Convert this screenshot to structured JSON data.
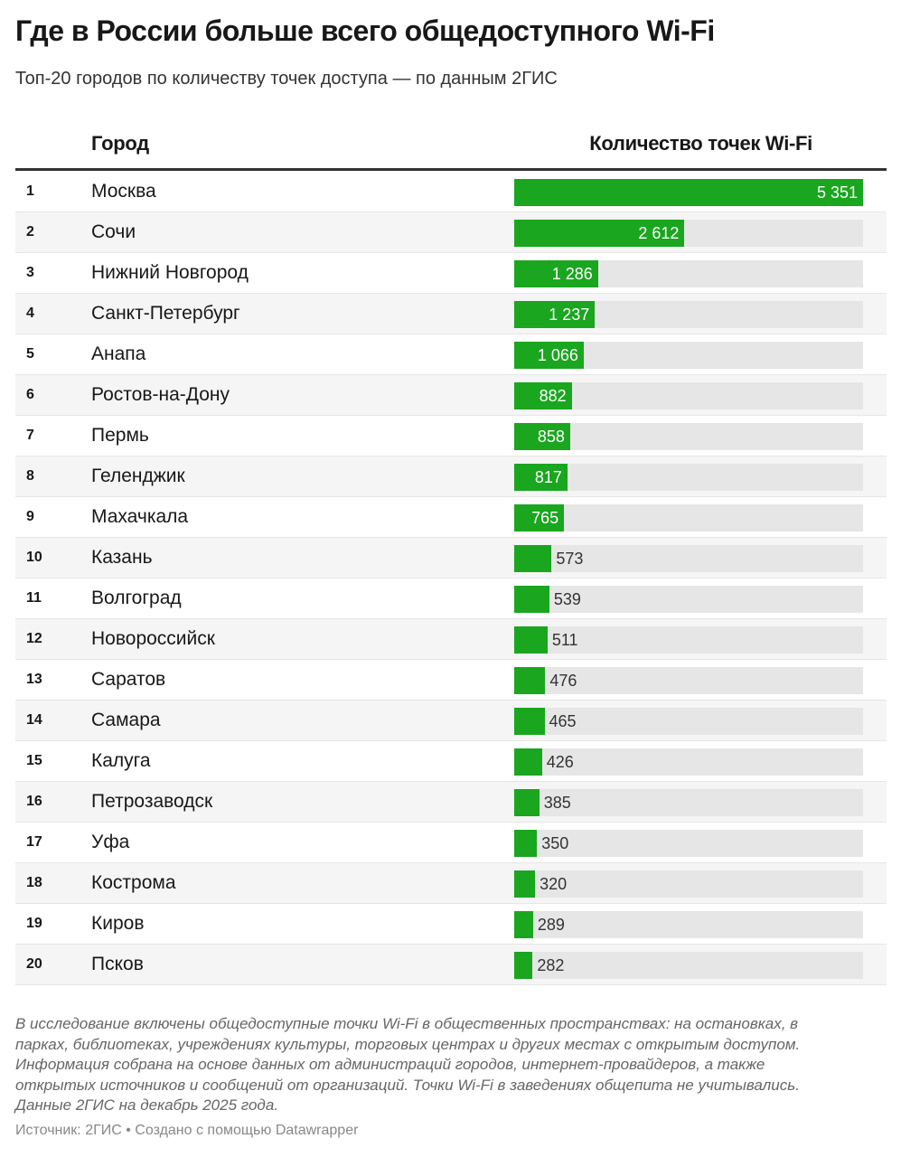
{
  "title": "Где в России больше всего общедоступного Wi-Fi",
  "subtitle": "Топ-20 городов по количеству точек доступа — по данным 2ГИС",
  "colors": {
    "bar": "#1aa61f",
    "track": "#e6e6e6",
    "stripe": "#f5f5f5"
  },
  "chart_data": {
    "type": "table",
    "columns": [
      "",
      "Город",
      "Количество точек Wi-Fi"
    ],
    "xlim": [
      0,
      5351
    ],
    "rows": [
      {
        "rank": "1",
        "city": "Москва",
        "value": 5351,
        "label": "5 351"
      },
      {
        "rank": "2",
        "city": "Сочи",
        "value": 2612,
        "label": "2 612"
      },
      {
        "rank": "3",
        "city": "Нижний Новгород",
        "value": 1286,
        "label": "1 286"
      },
      {
        "rank": "4",
        "city": "Санкт-Петербург",
        "value": 1237,
        "label": "1 237"
      },
      {
        "rank": "5",
        "city": "Анапа",
        "value": 1066,
        "label": "1 066"
      },
      {
        "rank": "6",
        "city": "Ростов-на-Дону",
        "value": 882,
        "label": "882"
      },
      {
        "rank": "7",
        "city": "Пермь",
        "value": 858,
        "label": "858"
      },
      {
        "rank": "8",
        "city": "Геленджик",
        "value": 817,
        "label": "817"
      },
      {
        "rank": "9",
        "city": "Махачкала",
        "value": 765,
        "label": "765"
      },
      {
        "rank": "10",
        "city": "Казань",
        "value": 573,
        "label": "573"
      },
      {
        "rank": "11",
        "city": "Волгоград",
        "value": 539,
        "label": "539"
      },
      {
        "rank": "12",
        "city": "Новороссийск",
        "value": 511,
        "label": "511"
      },
      {
        "rank": "13",
        "city": "Саратов",
        "value": 476,
        "label": "476"
      },
      {
        "rank": "14",
        "city": "Самара",
        "value": 465,
        "label": "465"
      },
      {
        "rank": "15",
        "city": "Калуга",
        "value": 426,
        "label": "426"
      },
      {
        "rank": "16",
        "city": "Петрозаводск",
        "value": 385,
        "label": "385"
      },
      {
        "rank": "17",
        "city": "Уфа",
        "value": 350,
        "label": "350"
      },
      {
        "rank": "18",
        "city": "Кострома",
        "value": 320,
        "label": "320"
      },
      {
        "rank": "19",
        "city": "Киров",
        "value": 289,
        "label": "289"
      },
      {
        "rank": "20",
        "city": "Псков",
        "value": 282,
        "label": "282"
      }
    ]
  },
  "notes": [
    "В исследование включены общедоступные точки Wi-Fi в общественных пространствах: на остановках, в",
    "парках, библиотеках, учреждениях культуры, торговых центрах и других местах с открытым доступом.",
    "Информация собрана на основе данных от администраций городов, интернет-провайдеров, а также",
    "открытых источников и сообщений от организаций. Точки Wi-Fi в заведениях общепита не учитывались.",
    "Данные 2ГИС на декабрь 2025 года."
  ],
  "footer": "Источник: 2ГИС • Создано с помощью Datawrapper"
}
